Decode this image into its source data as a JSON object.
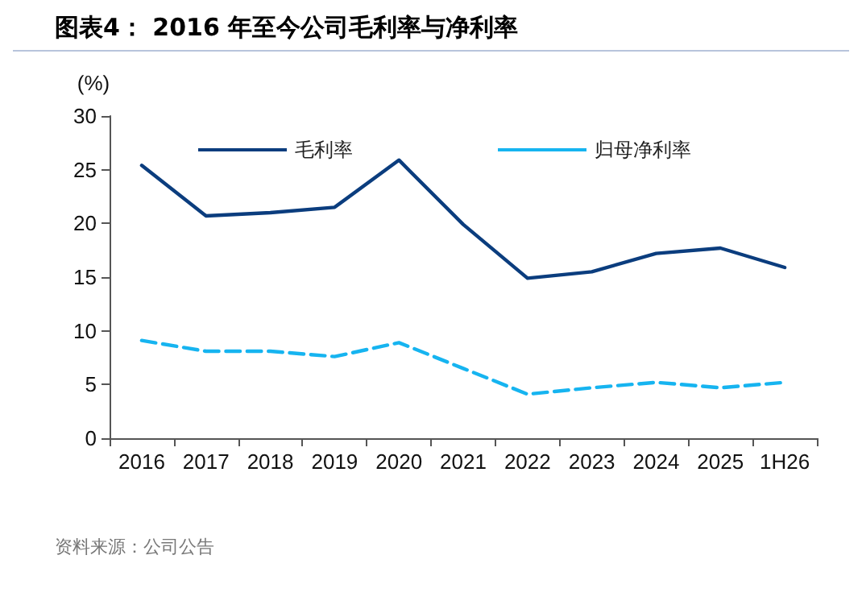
{
  "chart_data": {
    "type": "line",
    "title": "图表4：  2016 年至今公司毛利率与净利率",
    "ylabel": "(%)",
    "categories": [
      "2016",
      "2017",
      "2018",
      "2019",
      "2020",
      "2021",
      "2022",
      "2023",
      "2024",
      "2025",
      "1H26"
    ],
    "series": [
      {
        "name": "毛利率",
        "color": "#0b3d7e",
        "line_style": "solid",
        "values": [
          25.4,
          20.7,
          21.0,
          21.5,
          25.9,
          19.9,
          14.9,
          15.5,
          17.2,
          17.7,
          15.9
        ]
      },
      {
        "name": "归母净利率",
        "color": "#16b4f0",
        "line_style": "dashed",
        "values": [
          9.1,
          8.1,
          8.1,
          7.6,
          8.9,
          6.5,
          4.1,
          4.7,
          5.2,
          4.7,
          5.2
        ]
      }
    ],
    "ylim": [
      0,
      30
    ],
    "yticks": [
      0,
      5,
      10,
      15,
      20,
      25,
      30
    ],
    "grid": false,
    "legend": "top left",
    "marker": "none",
    "annotations": [
      "资料来源：公司公告"
    ]
  }
}
